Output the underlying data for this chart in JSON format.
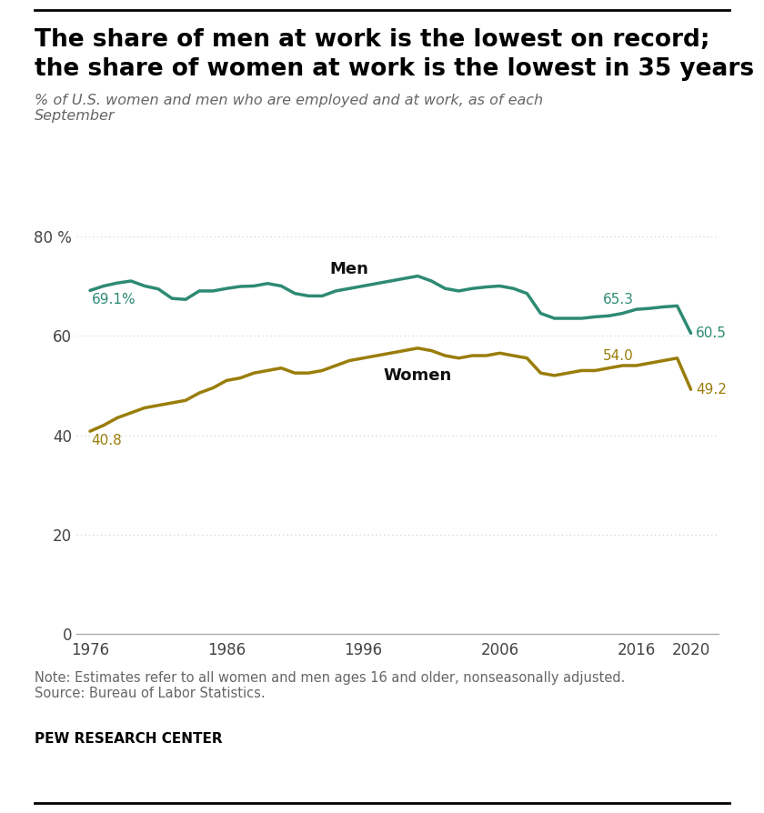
{
  "title_line1": "The share of men at work is the lowest on record;",
  "title_line2": "the share of women at work is the lowest in 35 years",
  "subtitle": "% of U.S. women and men who are employed and at work, as of each\nSeptember",
  "note": "Note: Estimates refer to all women and men ages 16 and older, nonseasonally adjusted.\nSource: Bureau of Labor Statistics.",
  "source_bold": "PEW RESEARCH CENTER",
  "men_color": "#2d8a73",
  "women_color": "#9a7d0a",
  "men_years": [
    1976,
    1977,
    1978,
    1979,
    1980,
    1981,
    1982,
    1983,
    1984,
    1985,
    1986,
    1987,
    1988,
    1989,
    1990,
    1991,
    1992,
    1993,
    1994,
    1995,
    1996,
    1997,
    1998,
    1999,
    2000,
    2001,
    2002,
    2003,
    2004,
    2005,
    2006,
    2007,
    2008,
    2009,
    2010,
    2011,
    2012,
    2013,
    2014,
    2015,
    2016,
    2017,
    2018,
    2019,
    2020
  ],
  "men_values": [
    69.1,
    70.0,
    70.6,
    71.0,
    70.0,
    69.4,
    67.5,
    67.3,
    69.0,
    69.0,
    69.5,
    69.9,
    70.0,
    70.5,
    70.0,
    68.5,
    68.0,
    68.0,
    69.0,
    69.5,
    70.0,
    70.5,
    71.0,
    71.5,
    72.0,
    71.0,
    69.5,
    69.0,
    69.5,
    69.8,
    70.0,
    69.5,
    68.5,
    64.5,
    63.5,
    63.5,
    63.5,
    63.8,
    64.0,
    64.5,
    65.3,
    65.5,
    65.8,
    66.0,
    60.5
  ],
  "women_years": [
    1976,
    1977,
    1978,
    1979,
    1980,
    1981,
    1982,
    1983,
    1984,
    1985,
    1986,
    1987,
    1988,
    1989,
    1990,
    1991,
    1992,
    1993,
    1994,
    1995,
    1996,
    1997,
    1998,
    1999,
    2000,
    2001,
    2002,
    2003,
    2004,
    2005,
    2006,
    2007,
    2008,
    2009,
    2010,
    2011,
    2012,
    2013,
    2014,
    2015,
    2016,
    2017,
    2018,
    2019,
    2020
  ],
  "women_values": [
    40.8,
    42.0,
    43.5,
    44.5,
    45.5,
    46.0,
    46.5,
    47.0,
    48.5,
    49.5,
    51.0,
    51.5,
    52.5,
    53.0,
    53.5,
    52.5,
    52.5,
    53.0,
    54.0,
    55.0,
    55.5,
    56.0,
    56.5,
    57.0,
    57.5,
    57.0,
    56.0,
    55.5,
    56.0,
    56.0,
    56.5,
    56.0,
    55.5,
    52.5,
    52.0,
    52.5,
    53.0,
    53.0,
    53.5,
    54.0,
    54.0,
    54.5,
    55.0,
    55.5,
    49.2
  ],
  "ylim": [
    0,
    85
  ],
  "yticks": [
    0,
    20,
    40,
    60,
    80
  ],
  "ytick_labels": [
    "0",
    "20",
    "40",
    "60",
    "80 %"
  ],
  "xticks": [
    1976,
    1986,
    1996,
    2006,
    2016,
    2020
  ],
  "background_color": "#ffffff",
  "grid_color": "#cccccc",
  "line_width": 2.5
}
